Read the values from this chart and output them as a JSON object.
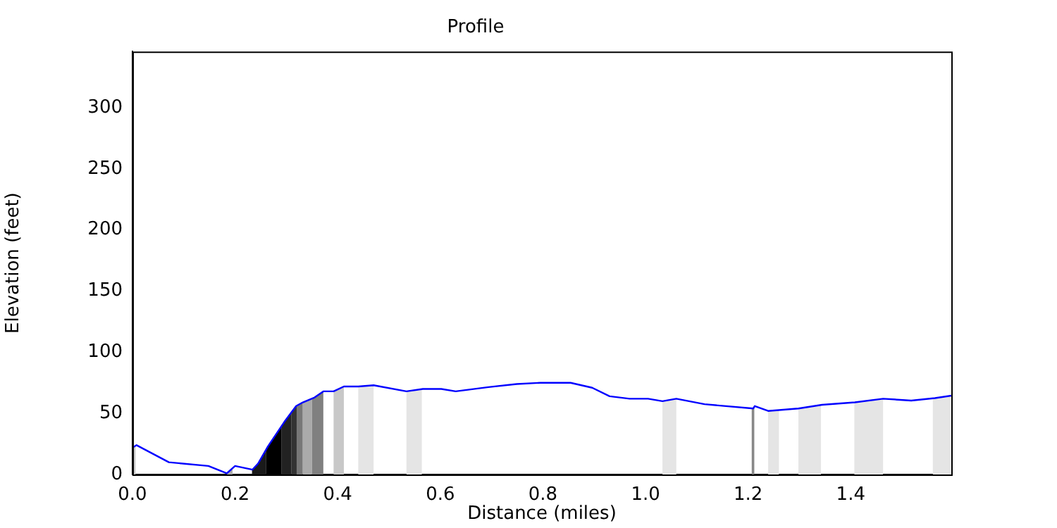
{
  "chart_data": {
    "type": "line",
    "title": "Profile",
    "xlabel": "Distance (miles)",
    "ylabel": "Elevation (feet)",
    "xlim": [
      0,
      1.596
    ],
    "ylim": [
      0,
      346
    ],
    "xticks": [
      {
        "value": 0,
        "label": "0.0"
      },
      {
        "value": 0.2,
        "label": "0.2"
      },
      {
        "value": 0.4,
        "label": "0.4"
      },
      {
        "value": 0.6,
        "label": "0.6"
      },
      {
        "value": 0.8,
        "label": "0.8"
      },
      {
        "value": 1.0,
        "label": "1.0"
      },
      {
        "value": 1.2,
        "label": "1.2"
      },
      {
        "value": 1.4,
        "label": "1.4"
      }
    ],
    "yticks": [
      0,
      50,
      100,
      150,
      200,
      250,
      300
    ],
    "grid": false,
    "legend": false,
    "marker": "none",
    "line_style": "solid",
    "series": [
      {
        "color": "#0000ff",
        "x": [
          0,
          0.008,
          0.071,
          0.148,
          0.184,
          0.2,
          0.234,
          0.245,
          0.264,
          0.296,
          0.319,
          0.332,
          0.355,
          0.372,
          0.392,
          0.412,
          0.44,
          0.47,
          0.534,
          0.566,
          0.602,
          0.63,
          0.694,
          0.749,
          0.795,
          0.854,
          0.896,
          0.93,
          0.969,
          1.005,
          1.033,
          1.06,
          1.115,
          1.21,
          1.213,
          1.239,
          1.298,
          1.344,
          1.408,
          1.463,
          1.518,
          1.564,
          1.596
        ],
        "values": [
          22,
          24,
          10,
          7,
          1,
          7,
          4,
          9,
          23,
          43,
          56,
          59,
          63,
          68,
          68,
          72,
          72,
          73,
          68,
          70,
          70,
          68,
          71.5,
          74,
          75,
          75,
          71,
          64,
          62,
          62,
          60,
          62,
          57.5,
          54,
          56,
          52,
          54,
          57,
          59,
          62,
          60.5,
          62.5,
          64.5
        ]
      }
    ],
    "bands": [
      {
        "axis": "x",
        "from": 0,
        "to": 0.006,
        "color": "#c8c8c8"
      },
      {
        "axis": "x",
        "from": 0.184,
        "to": 0.195,
        "color": "#aaaaaa"
      },
      {
        "axis": "x",
        "from": 0.233,
        "to": 0.26,
        "color": "#1a1a1a"
      },
      {
        "axis": "x",
        "from": 0.26,
        "to": 0.29,
        "color": "#000000"
      },
      {
        "axis": "x",
        "from": 0.29,
        "to": 0.31,
        "color": "#222222"
      },
      {
        "axis": "x",
        "from": 0.31,
        "to": 0.32,
        "color": "#333333"
      },
      {
        "axis": "x",
        "from": 0.32,
        "to": 0.332,
        "color": "#777777"
      },
      {
        "axis": "x",
        "from": 0.332,
        "to": 0.35,
        "color": "#aaaaaa"
      },
      {
        "axis": "x",
        "from": 0.35,
        "to": 0.372,
        "color": "#808080"
      },
      {
        "axis": "x",
        "from": 0.392,
        "to": 0.412,
        "color": "#c8c8c8"
      },
      {
        "axis": "x",
        "from": 0.44,
        "to": 0.47,
        "color": "#e5e5e5"
      },
      {
        "axis": "x",
        "from": 0.534,
        "to": 0.564,
        "color": "#e5e5e5"
      },
      {
        "axis": "x",
        "from": 1.033,
        "to": 1.06,
        "color": "#e5e5e5"
      },
      {
        "axis": "x",
        "from": 1.207,
        "to": 1.212,
        "color": "#888888"
      },
      {
        "axis": "x",
        "from": 1.239,
        "to": 1.26,
        "color": "#e5e5e5"
      },
      {
        "axis": "x",
        "from": 1.298,
        "to": 1.342,
        "color": "#e5e5e5"
      },
      {
        "axis": "x",
        "from": 1.407,
        "to": 1.463,
        "color": "#e5e5e5"
      },
      {
        "axis": "x",
        "from": 1.56,
        "to": 1.596,
        "color": "#e5e5e5"
      }
    ]
  }
}
